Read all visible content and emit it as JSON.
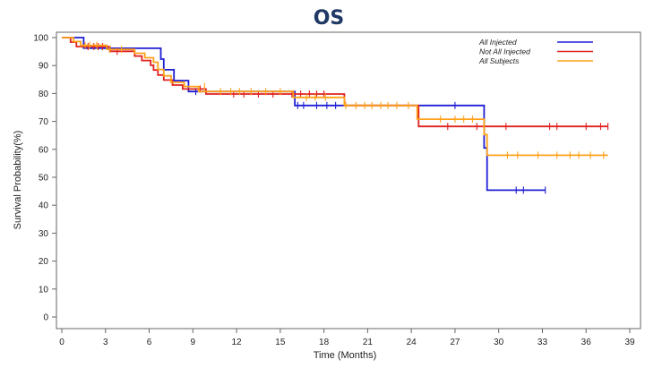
{
  "chart_data": {
    "type": "line",
    "step": true,
    "title": "OS",
    "xlabel": "Time (Months)",
    "ylabel": "Survival Probability(%)",
    "xlim": [
      0,
      39
    ],
    "ylim": [
      0,
      100
    ],
    "xticks": [
      0,
      3,
      6,
      9,
      12,
      15,
      18,
      21,
      24,
      27,
      30,
      33,
      36,
      39
    ],
    "yticks": [
      0,
      10,
      20,
      30,
      40,
      50,
      60,
      70,
      80,
      90,
      100
    ],
    "grid": false,
    "legend_position": "top-right",
    "series": [
      {
        "name": "All Injected",
        "color": "#1f1fd6",
        "points": [
          [
            0,
            100
          ],
          [
            1.5,
            96.2
          ],
          [
            6.8,
            92.3
          ],
          [
            7.0,
            88.5
          ],
          [
            7.7,
            84.6
          ],
          [
            8.7,
            80.7
          ],
          [
            16.0,
            75.7
          ],
          [
            24.5,
            75.7
          ],
          [
            29.0,
            60.5
          ],
          [
            29.2,
            45.4
          ],
          [
            33.2,
            45.4
          ]
        ],
        "censored": [
          [
            9.2,
            80.7
          ],
          [
            16.2,
            75.7
          ],
          [
            16.6,
            75.7
          ],
          [
            17.5,
            75.7
          ],
          [
            18.2,
            75.7
          ],
          [
            18.8,
            75.7
          ],
          [
            27.0,
            75.7
          ],
          [
            31.2,
            45.4
          ],
          [
            31.7,
            45.4
          ],
          [
            33.2,
            45.4
          ]
        ]
      },
      {
        "name": "Not All Injected",
        "color": "#e02020",
        "points": [
          [
            0,
            100
          ],
          [
            0.6,
            98.4
          ],
          [
            1.0,
            96.8
          ],
          [
            3.3,
            95.1
          ],
          [
            5.0,
            93.4
          ],
          [
            5.5,
            91.8
          ],
          [
            6.1,
            90.1
          ],
          [
            6.3,
            88.4
          ],
          [
            6.6,
            86.6
          ],
          [
            7.0,
            84.8
          ],
          [
            7.6,
            83.0
          ],
          [
            8.3,
            81.6
          ],
          [
            9.9,
            79.8
          ],
          [
            19.4,
            75.7
          ],
          [
            24.5,
            68.2
          ],
          [
            37.5,
            68.2
          ]
        ],
        "censored": [
          [
            1.8,
            96.8
          ],
          [
            2.2,
            96.8
          ],
          [
            2.5,
            96.8
          ],
          [
            2.8,
            96.8
          ],
          [
            3.8,
            95.1
          ],
          [
            9.5,
            81.6
          ],
          [
            11.8,
            79.8
          ],
          [
            12.5,
            79.8
          ],
          [
            13.5,
            79.8
          ],
          [
            14.5,
            79.8
          ],
          [
            15.8,
            79.8
          ],
          [
            16.4,
            79.8
          ],
          [
            17.0,
            79.8
          ],
          [
            17.5,
            79.8
          ],
          [
            18.0,
            79.8
          ],
          [
            26.5,
            68.2
          ],
          [
            28.5,
            68.2
          ],
          [
            30.5,
            68.2
          ],
          [
            33.5,
            68.2
          ],
          [
            34.0,
            68.2
          ],
          [
            36.0,
            68.2
          ],
          [
            37.0,
            68.2
          ],
          [
            37.5,
            68.2
          ]
        ]
      },
      {
        "name": "All Subjects",
        "color": "#ffa21a",
        "points": [
          [
            0,
            100
          ],
          [
            0.8,
            98.6
          ],
          [
            1.3,
            97.2
          ],
          [
            3.1,
            95.8
          ],
          [
            5.0,
            94.4
          ],
          [
            5.7,
            92.8
          ],
          [
            6.3,
            91.2
          ],
          [
            6.6,
            88.6
          ],
          [
            7.0,
            86.3
          ],
          [
            7.5,
            84.0
          ],
          [
            8.4,
            82.5
          ],
          [
            9.4,
            80.7
          ],
          [
            15.9,
            78.6
          ],
          [
            19.4,
            75.7
          ],
          [
            24.4,
            70.8
          ],
          [
            29.0,
            65.3
          ],
          [
            29.2,
            57.9
          ],
          [
            37.5,
            57.9
          ]
        ],
        "censored": [
          [
            1.6,
            97.2
          ],
          [
            1.9,
            97.2
          ],
          [
            2.4,
            97.2
          ],
          [
            3.3,
            95.8
          ],
          [
            4.1,
            95.8
          ],
          [
            9.8,
            82.5
          ],
          [
            10.9,
            80.7
          ],
          [
            11.6,
            80.7
          ],
          [
            12.2,
            80.7
          ],
          [
            13.0,
            80.7
          ],
          [
            14.0,
            80.7
          ],
          [
            15.0,
            80.7
          ],
          [
            16.8,
            78.6
          ],
          [
            17.4,
            78.6
          ],
          [
            18.1,
            78.6
          ],
          [
            19.5,
            75.7
          ],
          [
            20.2,
            75.7
          ],
          [
            20.8,
            75.7
          ],
          [
            21.3,
            75.7
          ],
          [
            21.9,
            75.7
          ],
          [
            22.4,
            75.7
          ],
          [
            23.0,
            75.7
          ],
          [
            23.8,
            75.7
          ],
          [
            26.0,
            70.8
          ],
          [
            27.0,
            70.8
          ],
          [
            27.6,
            70.8
          ],
          [
            28.2,
            70.8
          ],
          [
            30.6,
            57.9
          ],
          [
            31.3,
            57.9
          ],
          [
            32.7,
            57.9
          ],
          [
            34.0,
            57.9
          ],
          [
            34.9,
            57.9
          ],
          [
            35.5,
            57.9
          ],
          [
            36.3,
            57.9
          ],
          [
            37.2,
            57.9
          ]
        ]
      }
    ]
  }
}
